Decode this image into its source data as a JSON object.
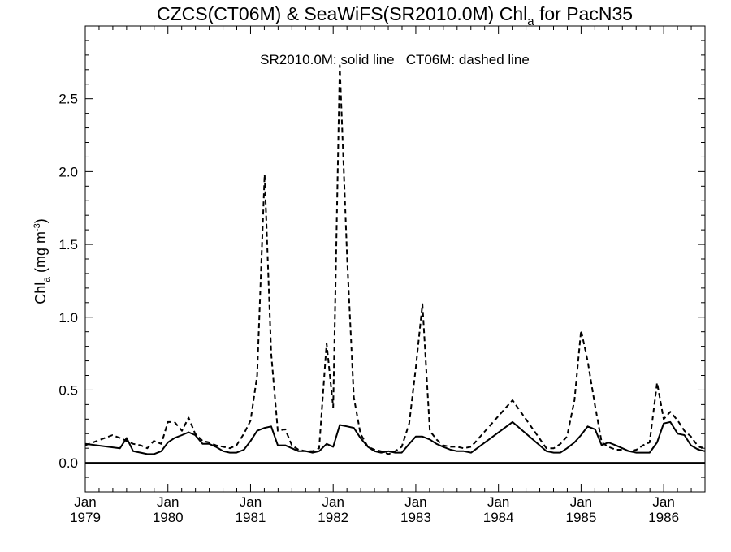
{
  "chart_data": {
    "type": "line",
    "title_parts": {
      "prefix": "CZCS(CT06M) & SeaWiFS(SR2010.0M)  Chl",
      "subscript": "a",
      "suffix": " for PacN35"
    },
    "annotation": "SR2010.0M: solid line   CT06M: dashed line",
    "ylabel_parts": {
      "prefix": "Chl",
      "subscript": "a",
      "middle": " (mg m",
      "superscript": "-3",
      "suffix": ")"
    },
    "xlim": [
      1979.0,
      1986.5
    ],
    "ylim": [
      -0.2,
      3.0
    ],
    "yticks": [
      {
        "value": 0.0,
        "label": "0.0"
      },
      {
        "value": 0.5,
        "label": "0.5"
      },
      {
        "value": 1.0,
        "label": "1.0"
      },
      {
        "value": 1.5,
        "label": "1.5"
      },
      {
        "value": 2.0,
        "label": "2.0"
      },
      {
        "value": 2.5,
        "label": "2.5"
      }
    ],
    "xticks": [
      {
        "value": 1979.0,
        "month": "Jan",
        "year": "1979"
      },
      {
        "value": 1980.0,
        "month": "Jan",
        "year": "1980"
      },
      {
        "value": 1981.0,
        "month": "Jan",
        "year": "1981"
      },
      {
        "value": 1982.0,
        "month": "Jan",
        "year": "1982"
      },
      {
        "value": 1983.0,
        "month": "Jan",
        "year": "1983"
      },
      {
        "value": 1984.0,
        "month": "Jan",
        "year": "1984"
      },
      {
        "value": 1985.0,
        "month": "Jan",
        "year": "1985"
      },
      {
        "value": 1986.0,
        "month": "Jan",
        "year": "1986"
      }
    ],
    "reference_line": 0.0,
    "series": [
      {
        "style": "solid",
        "points": [
          [
            1979.0,
            0.13
          ],
          [
            1979.42,
            0.1
          ],
          [
            1979.5,
            0.17
          ],
          [
            1979.58,
            0.08
          ],
          [
            1979.67,
            0.07
          ],
          [
            1979.75,
            0.06
          ],
          [
            1979.83,
            0.06
          ],
          [
            1979.92,
            0.08
          ],
          [
            1980.0,
            0.14
          ],
          [
            1980.08,
            0.17
          ],
          [
            1980.17,
            0.19
          ],
          [
            1980.25,
            0.21
          ],
          [
            1980.33,
            0.19
          ],
          [
            1980.42,
            0.13
          ],
          [
            1980.5,
            0.13
          ],
          [
            1980.58,
            0.11
          ],
          [
            1980.67,
            0.08
          ],
          [
            1980.75,
            0.07
          ],
          [
            1980.83,
            0.07
          ],
          [
            1980.92,
            0.09
          ],
          [
            1981.0,
            0.15
          ],
          [
            1981.08,
            0.22
          ],
          [
            1981.17,
            0.24
          ],
          [
            1981.25,
            0.25
          ],
          [
            1981.33,
            0.12
          ],
          [
            1981.42,
            0.12
          ],
          [
            1981.5,
            0.1
          ],
          [
            1981.58,
            0.08
          ],
          [
            1981.67,
            0.08
          ],
          [
            1981.75,
            0.07
          ],
          [
            1981.83,
            0.08
          ],
          [
            1981.92,
            0.13
          ],
          [
            1982.0,
            0.11
          ],
          [
            1982.08,
            0.26
          ],
          [
            1982.17,
            0.25
          ],
          [
            1982.25,
            0.24
          ],
          [
            1982.33,
            0.17
          ],
          [
            1982.42,
            0.11
          ],
          [
            1982.5,
            0.08
          ],
          [
            1982.58,
            0.07
          ],
          [
            1982.67,
            0.08
          ],
          [
            1982.75,
            0.07
          ],
          [
            1982.83,
            0.07
          ],
          [
            1982.92,
            0.13
          ],
          [
            1983.0,
            0.18
          ],
          [
            1983.08,
            0.18
          ],
          [
            1983.17,
            0.16
          ],
          [
            1983.25,
            0.13
          ],
          [
            1983.33,
            0.11
          ],
          [
            1983.42,
            0.09
          ],
          [
            1983.5,
            0.08
          ],
          [
            1983.58,
            0.08
          ],
          [
            1983.67,
            0.07
          ],
          [
            1984.17,
            0.28
          ],
          [
            1984.58,
            0.08
          ],
          [
            1984.67,
            0.07
          ],
          [
            1984.75,
            0.07
          ],
          [
            1984.83,
            0.1
          ],
          [
            1984.92,
            0.14
          ],
          [
            1985.0,
            0.19
          ],
          [
            1985.08,
            0.25
          ],
          [
            1985.17,
            0.23
          ],
          [
            1985.25,
            0.12
          ],
          [
            1985.33,
            0.14
          ],
          [
            1985.42,
            0.12
          ],
          [
            1985.5,
            0.1
          ],
          [
            1985.58,
            0.08
          ],
          [
            1985.67,
            0.07
          ],
          [
            1985.75,
            0.07
          ],
          [
            1985.83,
            0.07
          ],
          [
            1985.92,
            0.14
          ],
          [
            1986.0,
            0.27
          ],
          [
            1986.08,
            0.28
          ],
          [
            1986.17,
            0.2
          ],
          [
            1986.25,
            0.19
          ],
          [
            1986.33,
            0.12
          ],
          [
            1986.42,
            0.09
          ],
          [
            1986.5,
            0.08
          ]
        ]
      },
      {
        "style": "dashed",
        "points": [
          [
            1979.0,
            0.12
          ],
          [
            1979.33,
            0.19
          ],
          [
            1979.42,
            0.17
          ],
          [
            1979.5,
            0.15
          ],
          [
            1979.58,
            0.13
          ],
          [
            1979.67,
            0.12
          ],
          [
            1979.75,
            0.1
          ],
          [
            1979.83,
            0.15
          ],
          [
            1979.92,
            0.13
          ],
          [
            1980.0,
            0.28
          ],
          [
            1980.08,
            0.28
          ],
          [
            1980.17,
            0.22
          ],
          [
            1980.25,
            0.31
          ],
          [
            1980.33,
            0.2
          ],
          [
            1980.42,
            0.15
          ],
          [
            1980.5,
            0.14
          ],
          [
            1980.58,
            0.12
          ],
          [
            1980.67,
            0.11
          ],
          [
            1980.75,
            0.1
          ],
          [
            1980.83,
            0.12
          ],
          [
            1980.92,
            0.2
          ],
          [
            1981.0,
            0.29
          ],
          [
            1981.08,
            0.6
          ],
          [
            1981.17,
            1.98
          ],
          [
            1981.25,
            0.75
          ],
          [
            1981.33,
            0.22
          ],
          [
            1981.42,
            0.23
          ],
          [
            1981.5,
            0.12
          ],
          [
            1981.58,
            0.09
          ],
          [
            1981.67,
            0.08
          ],
          [
            1981.75,
            0.08
          ],
          [
            1981.83,
            0.1
          ],
          [
            1981.92,
            0.82
          ],
          [
            1982.0,
            0.38
          ],
          [
            1982.08,
            2.73
          ],
          [
            1982.17,
            1.39
          ],
          [
            1982.25,
            0.45
          ],
          [
            1982.33,
            0.2
          ],
          [
            1982.42,
            0.11
          ],
          [
            1982.5,
            0.09
          ],
          [
            1982.58,
            0.08
          ],
          [
            1982.67,
            0.06
          ],
          [
            1982.75,
            0.08
          ],
          [
            1982.83,
            0.11
          ],
          [
            1982.92,
            0.27
          ],
          [
            1983.0,
            0.65
          ],
          [
            1983.08,
            1.09
          ],
          [
            1983.17,
            0.22
          ],
          [
            1983.25,
            0.16
          ],
          [
            1983.33,
            0.12
          ],
          [
            1983.42,
            0.11
          ],
          [
            1983.5,
            0.11
          ],
          [
            1983.58,
            0.1
          ],
          [
            1983.67,
            0.11
          ],
          [
            1984.17,
            0.43
          ],
          [
            1984.58,
            0.1
          ],
          [
            1984.67,
            0.1
          ],
          [
            1984.75,
            0.13
          ],
          [
            1984.83,
            0.18
          ],
          [
            1984.92,
            0.43
          ],
          [
            1985.0,
            0.91
          ],
          [
            1985.08,
            0.7
          ],
          [
            1985.17,
            0.39
          ],
          [
            1985.25,
            0.14
          ],
          [
            1985.33,
            0.11
          ],
          [
            1985.42,
            0.09
          ],
          [
            1985.5,
            0.09
          ],
          [
            1985.58,
            0.08
          ],
          [
            1985.67,
            0.09
          ],
          [
            1985.75,
            0.12
          ],
          [
            1985.83,
            0.14
          ],
          [
            1985.92,
            0.55
          ],
          [
            1986.0,
            0.3
          ],
          [
            1986.08,
            0.35
          ],
          [
            1986.17,
            0.29
          ],
          [
            1986.25,
            0.22
          ],
          [
            1986.33,
            0.18
          ],
          [
            1986.42,
            0.11
          ],
          [
            1986.5,
            0.1
          ]
        ]
      }
    ]
  }
}
